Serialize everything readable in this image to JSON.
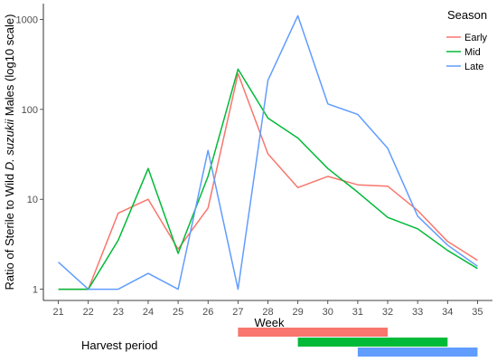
{
  "chart_data": {
    "type": "line",
    "ylabel_prefix": "Ratio of Sterile to Wild ",
    "ylabel_species": "D. suzukii",
    "ylabel_suffix": " Males (log10 scale)",
    "xlabel": "Week",
    "y_scale": "log10",
    "ylim": [
      0.75,
      1500
    ],
    "xlim": [
      20.5,
      35.5
    ],
    "x_ticks": [
      21,
      22,
      23,
      24,
      25,
      26,
      27,
      28,
      29,
      30,
      31,
      32,
      33,
      34,
      35
    ],
    "y_ticks": [
      1,
      10,
      100,
      1000
    ],
    "y_tick_labels": [
      "1",
      "10",
      "100",
      "1000"
    ],
    "grid": false,
    "legend": {
      "title": "Season",
      "placement": "top-right",
      "items": [
        {
          "name": "Early",
          "color": "#F8766D"
        },
        {
          "name": "Mid",
          "color": "#00BA38"
        },
        {
          "name": "Late",
          "color": "#619CFF"
        }
      ]
    },
    "series": [
      {
        "name": "Early",
        "color": "#F8766D",
        "x": [
          21,
          22,
          23,
          24,
          25,
          26,
          27,
          28,
          29,
          30,
          31,
          32,
          33,
          34,
          35
        ],
        "values": [
          1,
          1,
          7,
          10,
          2.8,
          8,
          250,
          32,
          13.5,
          18,
          14.5,
          14,
          7.5,
          3.4,
          2.1
        ]
      },
      {
        "name": "Mid",
        "color": "#00BA38",
        "x": [
          21,
          22,
          23,
          24,
          25,
          26,
          27,
          28,
          29,
          30,
          31,
          32,
          33,
          34,
          35
        ],
        "values": [
          1,
          1,
          3.5,
          22,
          2.5,
          18,
          280,
          80,
          48,
          22,
          12,
          6.3,
          4.7,
          2.7,
          1.7
        ]
      },
      {
        "name": "Late",
        "color": "#619CFF",
        "x": [
          21,
          22,
          23,
          24,
          25,
          26,
          27,
          28,
          29,
          30,
          31,
          32,
          33,
          34,
          35
        ],
        "values": [
          2,
          1,
          1,
          1.5,
          1,
          35,
          1,
          210,
          1100,
          115,
          88,
          37,
          6.5,
          3.1,
          1.8
        ]
      }
    ],
    "harvest_period": {
      "label": "Harvest period",
      "bars": [
        {
          "season": "Early",
          "color": "#F8766D",
          "start_week": 27,
          "end_week": 32
        },
        {
          "season": "Mid",
          "color": "#00BA38",
          "start_week": 29,
          "end_week": 34
        },
        {
          "season": "Late",
          "color": "#619CFF",
          "start_week": 31,
          "end_week": 35
        }
      ]
    }
  }
}
